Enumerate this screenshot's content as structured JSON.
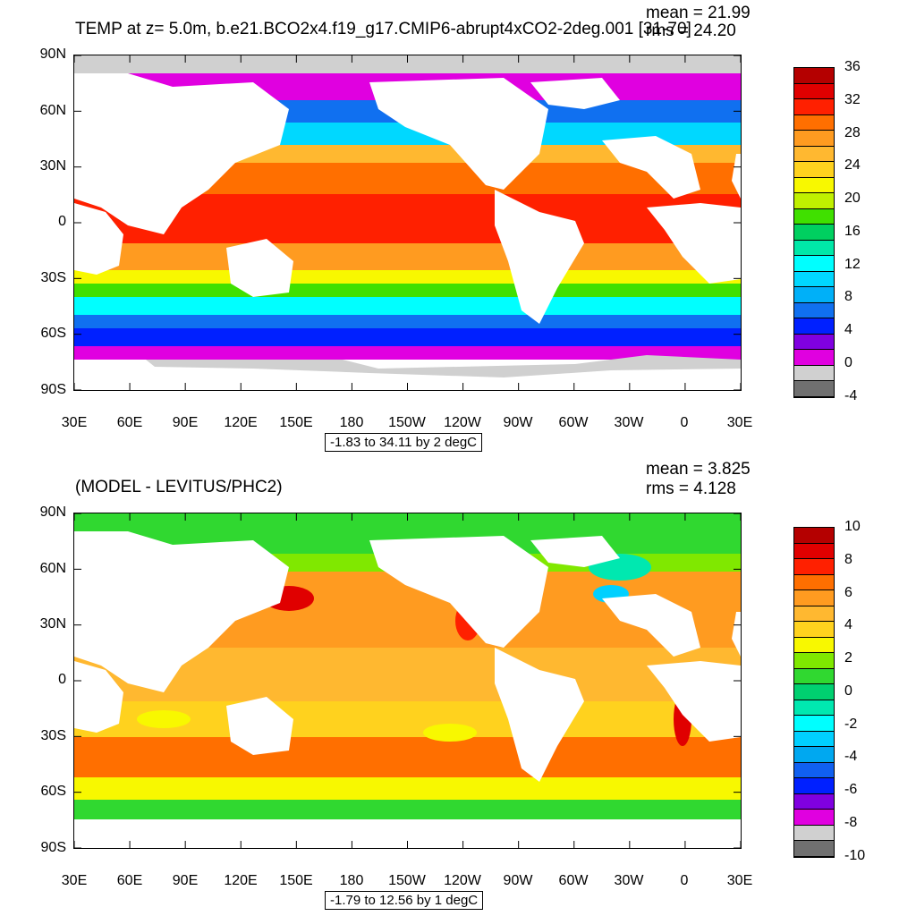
{
  "top_panel": {
    "title": "TEMP at z=   5.0m, b.e21.BCO2x4.f19_g17.CMIP6-abrupt4xCO2-2deg.001 [31-70]",
    "mean_label": "mean = 21.99",
    "rms_label": "rms = 24.20",
    "range_label": "-1.83 to 34.11 by 2 degC",
    "colorbar": {
      "labels": [
        "36",
        "32",
        "28",
        "24",
        "20",
        "16",
        "12",
        "8",
        "4",
        "0",
        "-4"
      ],
      "colors": [
        "#b40000",
        "#e00000",
        "#ff2000",
        "#ff6f00",
        "#ff9b20",
        "#ffb830",
        "#ffd21e",
        "#f8f800",
        "#c0f000",
        "#40e000",
        "#00d060",
        "#00e8a8",
        "#00ffff",
        "#00d8ff",
        "#00b0f8",
        "#1070f0",
        "#0020ff",
        "#8000e0",
        "#e000e0",
        "#d0d0d0",
        "#707070"
      ]
    }
  },
  "bottom_panel": {
    "title": "(MODEL - LEVITUS/PHC2)",
    "mean_label": "mean = 3.825",
    "rms_label": "rms = 4.128",
    "range_label": "-1.79 to 12.56 by 1 degC",
    "colorbar": {
      "labels": [
        "10",
        "8",
        "6",
        "4",
        "2",
        "0",
        "-2",
        "-4",
        "-6",
        "-8",
        "-10"
      ],
      "colors": [
        "#b40000",
        "#e00000",
        "#ff2000",
        "#ff6f00",
        "#ff9b20",
        "#ffb830",
        "#ffd21e",
        "#f8f800",
        "#80e800",
        "#30d830",
        "#00d070",
        "#00e8b0",
        "#00ffff",
        "#00d0ff",
        "#00a8f0",
        "#1060f0",
        "#0020ff",
        "#8000e0",
        "#e000e0",
        "#d0d0d0",
        "#707070"
      ]
    }
  },
  "axes": {
    "y_ticks": [
      "90N",
      "60N",
      "30N",
      "0",
      "30S",
      "60S",
      "90S"
    ],
    "x_ticks": [
      "30E",
      "60E",
      "90E",
      "120E",
      "150E",
      "180",
      "150W",
      "120W",
      "90W",
      "60W",
      "30W",
      "0",
      "30E"
    ]
  }
}
